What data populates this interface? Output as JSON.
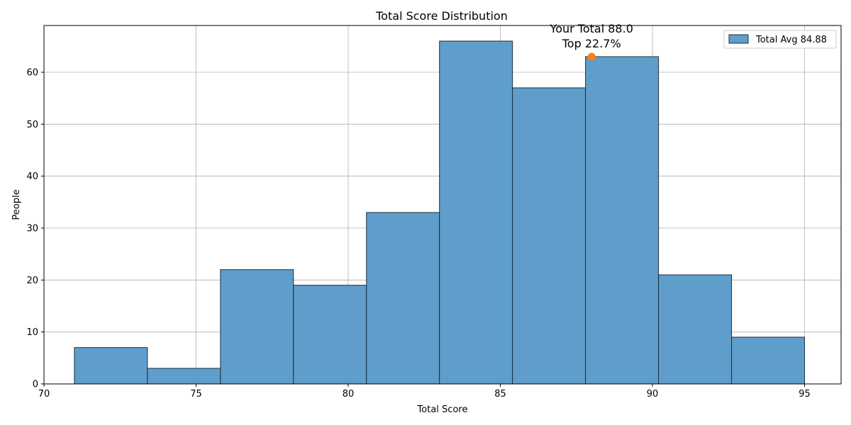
{
  "chart_data": {
    "type": "bar",
    "title": "Total Score Distribution",
    "xlabel": "Total Score",
    "ylabel": "People",
    "xlim": [
      70,
      96.2
    ],
    "ylim": [
      0,
      69
    ],
    "xticks": [
      70,
      75,
      80,
      85,
      90,
      95
    ],
    "yticks": [
      0,
      10,
      20,
      30,
      40,
      50,
      60
    ],
    "grid": true,
    "legend_position": "top-right",
    "colors": {
      "bar_fill": "#5f9ecb",
      "bar_edge": "#1f2d3d",
      "marker": "#ff7f0e",
      "grid": "#b0b0b0"
    },
    "series": [
      {
        "name": "Total Avg 84.88",
        "bins": [
          {
            "start": 71.0,
            "end": 73.4,
            "count": 7
          },
          {
            "start": 73.4,
            "end": 75.8,
            "count": 3
          },
          {
            "start": 75.8,
            "end": 78.2,
            "count": 22
          },
          {
            "start": 78.2,
            "end": 80.6,
            "count": 19
          },
          {
            "start": 80.6,
            "end": 83.0,
            "count": 33
          },
          {
            "start": 83.0,
            "end": 85.4,
            "count": 66
          },
          {
            "start": 85.4,
            "end": 87.8,
            "count": 57
          },
          {
            "start": 87.8,
            "end": 90.2,
            "count": 63
          },
          {
            "start": 90.2,
            "end": 92.6,
            "count": 21
          },
          {
            "start": 92.6,
            "end": 95.0,
            "count": 9
          }
        ]
      }
    ],
    "marker": {
      "x": 88.0,
      "y": 63,
      "label_line1": "Your Total 88.0",
      "label_line2": "Top 22.7%"
    }
  }
}
